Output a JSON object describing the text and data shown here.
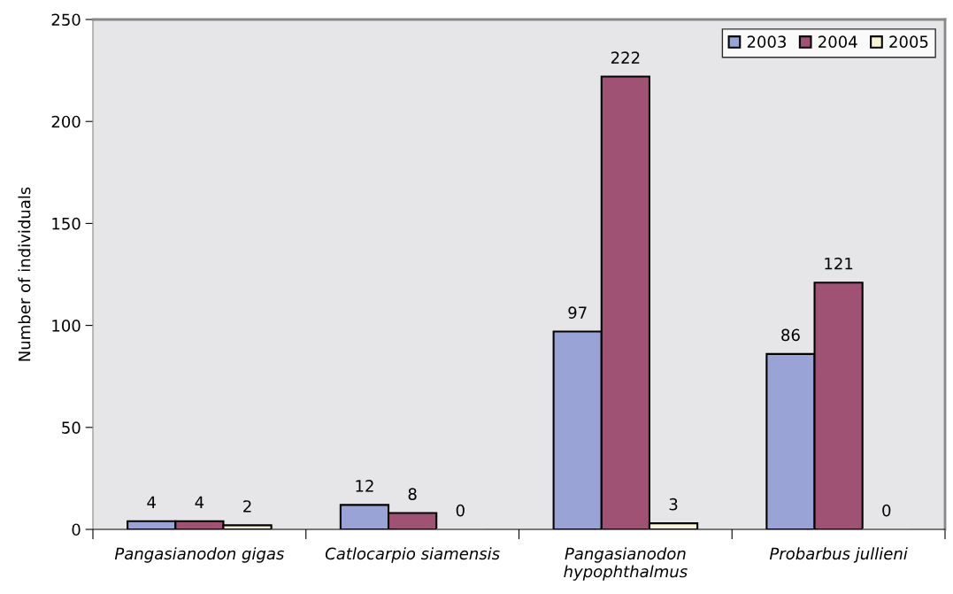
{
  "chart_data": {
    "type": "bar",
    "ylabel": "Number of individuals",
    "categories": [
      "Pangasianodon gigas",
      "Catlocarpio siamensis",
      "Pangasianodon hypophthalmus",
      "Probarbus jullieni"
    ],
    "series": [
      {
        "name": "2003",
        "color": "#9aa3d6",
        "values": [
          4,
          12,
          97,
          86
        ]
      },
      {
        "name": "2004",
        "color": "#a05275",
        "values": [
          4,
          8,
          222,
          121
        ]
      },
      {
        "name": "2005",
        "color": "#f7f5d6",
        "values": [
          2,
          0,
          3,
          0
        ]
      }
    ],
    "ylim": [
      0,
      250
    ],
    "yticks": [
      0,
      50,
      100,
      150,
      200,
      250
    ],
    "grid": false,
    "legend": "top right",
    "data_labels": true
  }
}
